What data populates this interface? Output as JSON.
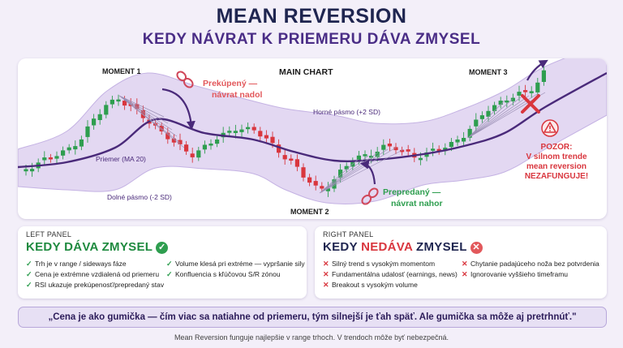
{
  "header": {
    "title": "MEAN REVERSION",
    "subtitle": "KEDY NÁVRAT K PRIEMERU DÁVA ZMYSEL"
  },
  "chart": {
    "main_label": "MAIN CHART",
    "moment1": "MOMENT 1",
    "moment2": "MOMENT 2",
    "moment3": "MOMENT 3",
    "overbought_line1": "Prekúpený —",
    "overbought_line2": "návrat nadol",
    "oversold_line1": "Prepredaný —",
    "oversold_line2": "návrat nahor",
    "upper_band": "Horné pásmo (+2 SD)",
    "mean_label": "Priemer (MA 20)",
    "lower_band": "Dolné pásmo (-2 SD)",
    "warning_line1": "POZOR:",
    "warning_line2": "V silnom trende",
    "warning_line3": "mean reversion",
    "warning_line4": "NEZAFUNGUJE!",
    "colors": {
      "bull": "#2e9e4f",
      "bear": "#d9363e",
      "mean": "#4a2a7a",
      "band": "#e3d8f2",
      "band_edge": "#c4b2e3"
    }
  },
  "left_panel": {
    "tag": "LEFT PANEL",
    "heading": "KEDY DÁVA ZMYSEL",
    "badge_icon": "check-icon",
    "col1": [
      "Trh je v range / sideways fáze",
      "Cena je extrémne vzdialená od priemeru",
      "RSI ukazuje prekúpenosť/prepredaný stav"
    ],
    "col2": [
      "Volume klesá pri extréme — vypršanie sily",
      "Konfluencia s kľúčovou S/R zónou"
    ]
  },
  "right_panel": {
    "tag": "RIGHT PANEL",
    "heading_a": "KEDY ",
    "heading_b": "NEDÁVA",
    "heading_c": " ZMYSEL",
    "badge_icon": "cross-icon",
    "col1": [
      "Silný trend s vysokým momentom",
      "Fundamentálna udalosť (earnings, news)",
      "Breakout s vysokým volume"
    ],
    "col2": [
      "Chytanie padajúceho noža bez potvrdenia",
      "Ignorovanie vyššieho timeframu"
    ]
  },
  "quote": "„Cena je ako gumička — čím viac sa natiahne od priemeru, tým silnejší je ťah späť. Ale gumička sa môže aj pretrhnúť.\"",
  "footer": "Mean Reversion funguje najlepšie v range trhoch. V trendoch môže byť nebezpečná."
}
